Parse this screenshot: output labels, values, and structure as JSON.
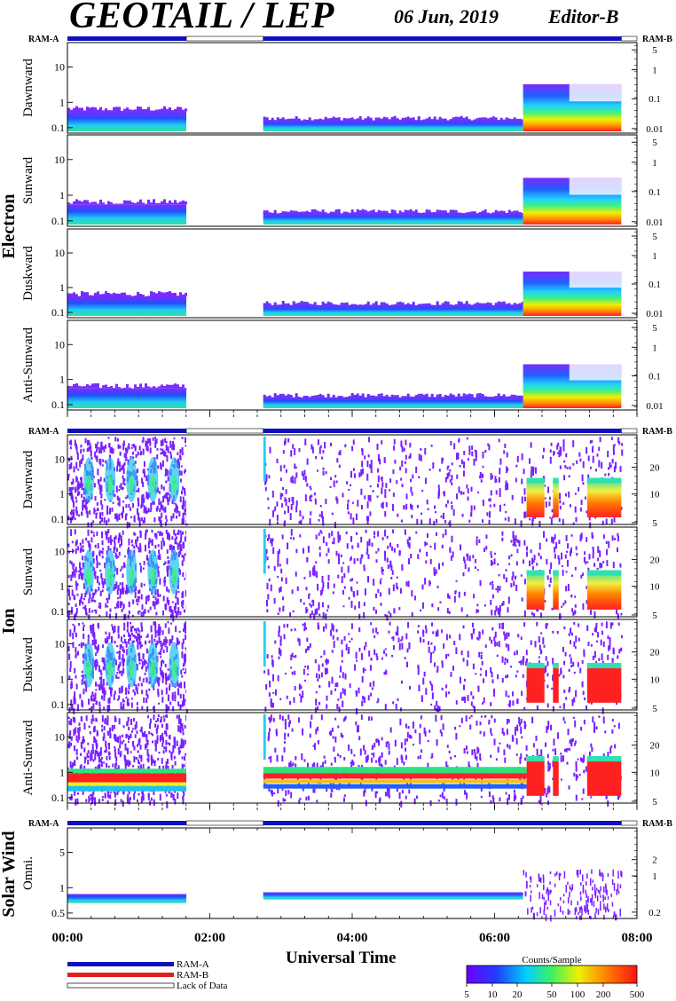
{
  "header": {
    "title": "GEOTAIL / LEP",
    "date": "06 Jun, 2019",
    "editor": "Editor-B"
  },
  "colors": {
    "ram_a": "#1010c0",
    "ram_b": "#e02020",
    "lack": "#ffffff"
  },
  "chart_data": {
    "type": "heatmap",
    "xlabel": "Universal Time",
    "x_ticks": [
      "00:00",
      "02:00",
      "04:00",
      "06:00",
      "08:00"
    ],
    "x_range_hours": [
      0,
      8
    ],
    "data_gaps_hours": [
      [
        1.67,
        2.75
      ]
    ],
    "data_end_hours": 7.78,
    "groups": [
      {
        "name": "Electron",
        "ram_left": "RAM-A",
        "ram_right": "RAM-B",
        "panels": [
          {
            "name": "Dawnward",
            "left_ticks": [
              "10",
              "1",
              "0.1"
            ],
            "right_ticks": [
              "5",
              "1",
              "0.1",
              "0.01"
            ]
          },
          {
            "name": "Sunward",
            "left_ticks": [
              "10",
              "1",
              "0.1"
            ],
            "right_ticks": [
              "5",
              "1",
              "0.1",
              "0.01"
            ]
          },
          {
            "name": "Duskward",
            "left_ticks": [
              "10",
              "1",
              "0.1"
            ],
            "right_ticks": [
              "5",
              "1",
              "0.1",
              "0.01"
            ]
          },
          {
            "name": "Anti-Sunward",
            "left_ticks": [
              "10",
              "1",
              "0.1"
            ],
            "right_ticks": [
              "5",
              "1",
              "0.1",
              "0.01"
            ]
          }
        ]
      },
      {
        "name": "Ion",
        "ram_left": "RAM-A",
        "ram_right": "RAM-B",
        "panels": [
          {
            "name": "Dawnward",
            "left_ticks": [
              "10",
              "1",
              "0.1"
            ],
            "right_ticks": [
              "20",
              "10",
              "5"
            ]
          },
          {
            "name": "Sunward",
            "left_ticks": [
              "10",
              "1",
              "0.1"
            ],
            "right_ticks": [
              "20",
              "10",
              "5"
            ]
          },
          {
            "name": "Duskward",
            "left_ticks": [
              "10",
              "1",
              "0.1"
            ],
            "right_ticks": [
              "20",
              "10",
              "5"
            ]
          },
          {
            "name": "Anti-Sunward",
            "left_ticks": [
              "10",
              "1",
              "0.1"
            ],
            "right_ticks": [
              "20",
              "10",
              "5"
            ]
          }
        ]
      },
      {
        "name": "Solar Wind",
        "ram_left": "RAM-A",
        "ram_right": "RAM-B",
        "panels": [
          {
            "name": "Omni.",
            "left_ticks": [
              "5",
              "1",
              "0.5"
            ],
            "right_ticks": [
              "2",
              "1",
              "0.2"
            ]
          }
        ]
      }
    ],
    "legend": {
      "items": [
        "RAM-A",
        "RAM-B",
        "Lack of Data"
      ],
      "colorbar_title": "Counts/Sample",
      "colorbar_ticks": [
        "5",
        "10",
        "20",
        "50",
        "100",
        "200",
        "500"
      ]
    }
  }
}
